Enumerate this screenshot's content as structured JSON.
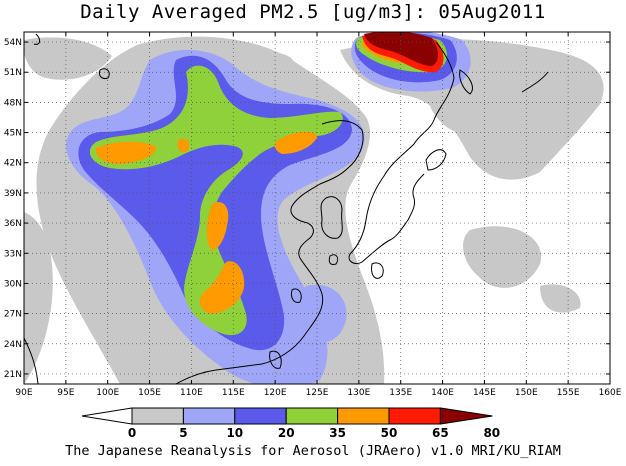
{
  "title": "Daily Averaged PM2.5 [ug/m3]: 05Aug2011",
  "credit": "The Japanese Reanalysis for Aerosol (JRAero) v1.0 MRI/KU_RIAM",
  "map": {
    "lon_range": [
      90,
      160
    ],
    "lat_range": [
      20,
      55
    ],
    "lon_labels": [
      "90E",
      "95E",
      "100E",
      "105E",
      "110E",
      "115E",
      "120E",
      "125E",
      "130E",
      "135E",
      "140E",
      "145E",
      "150E",
      "155E",
      "160E"
    ],
    "lat_labels": [
      "21N",
      "24N",
      "27N",
      "30N",
      "33N",
      "36N",
      "39N",
      "42N",
      "45N",
      "48N",
      "51N",
      "54N"
    ],
    "lon_ticks": [
      90,
      95,
      100,
      105,
      110,
      115,
      120,
      125,
      130,
      135,
      140,
      145,
      150,
      155,
      160
    ],
    "lat_ticks": [
      21,
      24,
      27,
      30,
      33,
      36,
      39,
      42,
      45,
      48,
      51,
      54
    ]
  },
  "legend": {
    "units": "ug/m3",
    "levels": [
      "0",
      "5",
      "10",
      "20",
      "35",
      "50",
      "65",
      "80"
    ],
    "colors": [
      "#ffffff",
      "#c8c8c8",
      "#a0a6f7",
      "#5a5aeb",
      "#8fd13a",
      "#ff9a00",
      "#ff1a00",
      "#8b0000"
    ]
  }
}
